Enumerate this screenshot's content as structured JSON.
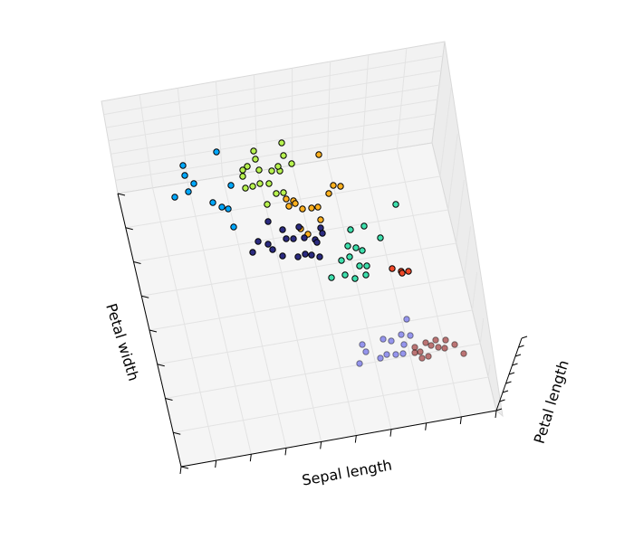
{
  "chart_data": {
    "type": "scatter",
    "projection": "3d",
    "grid": true,
    "xlabel": "Sepal length",
    "ylabel": "Petal width",
    "zlabel": "Petal length",
    "series": [
      {
        "cluster": 0,
        "color": "#00a8ff",
        "points": [
          [
            202,
            183
          ],
          [
            204,
            194
          ],
          [
            214,
            203
          ],
          [
            208,
            212
          ],
          [
            193,
            218
          ],
          [
            239,
            168
          ],
          [
            255,
            205
          ],
          [
            235,
            224
          ],
          [
            245,
            229
          ],
          [
            252,
            231
          ],
          [
            258,
            251
          ]
        ]
      },
      {
        "cluster": 1,
        "color": "#b7f24f",
        "points": [
          [
            280,
            167
          ],
          [
            311,
            158
          ],
          [
            282,
            176
          ],
          [
            273,
            184
          ],
          [
            268,
            188
          ],
          [
            268,
            195
          ],
          [
            286,
            188
          ],
          [
            300,
            189
          ],
          [
            309,
            189
          ],
          [
            307,
            184
          ],
          [
            322,
            181
          ],
          [
            313,
            172
          ],
          [
            297,
            203
          ],
          [
            287,
            203
          ],
          [
            279,
            206
          ],
          [
            271,
            208
          ],
          [
            295,
            226
          ],
          [
            305,
            214
          ],
          [
            313,
            213
          ]
        ]
      },
      {
        "cluster": 2,
        "color": "#ffb01f",
        "points": [
          [
            352,
            171
          ],
          [
            368,
            205
          ],
          [
            376,
            206
          ],
          [
            363,
            214
          ],
          [
            316,
            220
          ],
          [
            324,
            222
          ],
          [
            326,
            225
          ],
          [
            319,
            228
          ],
          [
            334,
            231
          ],
          [
            344,
            230
          ],
          [
            351,
            229
          ],
          [
            354,
            243
          ],
          [
            332,
            253
          ],
          [
            340,
            259
          ]
        ]
      },
      {
        "cluster": 3,
        "color": "#2b2b80",
        "points": [
          [
            296,
            245
          ],
          [
            330,
            251
          ],
          [
            312,
            254
          ],
          [
            354,
            252
          ],
          [
            356,
            258
          ],
          [
            336,
            263
          ],
          [
            348,
            265
          ],
          [
            285,
            267
          ],
          [
            296,
            270
          ],
          [
            316,
            264
          ],
          [
            324,
            264
          ],
          [
            350,
            268
          ],
          [
            279,
            279
          ],
          [
            301,
            276
          ],
          [
            312,
            283
          ],
          [
            337,
            281
          ],
          [
            344,
            282
          ],
          [
            353,
            284
          ],
          [
            329,
            284
          ]
        ]
      },
      {
        "cluster": 4,
        "color": "#3ee0ad",
        "points": [
          [
            437,
            226
          ],
          [
            387,
            254
          ],
          [
            402,
            250
          ],
          [
            420,
            263
          ],
          [
            384,
            272
          ],
          [
            393,
            274
          ],
          [
            400,
            277
          ],
          [
            386,
            284
          ],
          [
            377,
            288
          ],
          [
            397,
            294
          ],
          [
            405,
            294
          ],
          [
            381,
            304
          ],
          [
            392,
            308
          ],
          [
            404,
            304
          ],
          [
            366,
            307
          ]
        ]
      },
      {
        "cluster": 5,
        "color": "#f04a2a",
        "points": [
          [
            433,
            297
          ],
          [
            443,
            300
          ],
          [
            451,
            300
          ],
          [
            444,
            302
          ]
        ]
      },
      {
        "cluster": 6,
        "color": "#4646e6",
        "points": [
          [
            449,
            353
          ],
          [
            443,
            370
          ],
          [
            453,
            371
          ],
          [
            423,
            375
          ],
          [
            432,
            377
          ],
          [
            400,
            381
          ],
          [
            446,
            381
          ],
          [
            404,
            389
          ],
          [
            420,
            396
          ],
          [
            427,
            392
          ],
          [
            437,
            392
          ],
          [
            445,
            391
          ],
          [
            397,
            402
          ]
        ]
      },
      {
        "cluster": 7,
        "color": "#8b0a0a",
        "points": [
          [
            470,
            379
          ],
          [
            481,
            376
          ],
          [
            492,
            376
          ],
          [
            502,
            381
          ],
          [
            484,
            384
          ],
          [
            476,
            382
          ],
          [
            458,
            384
          ],
          [
            464,
            389
          ],
          [
            473,
            394
          ],
          [
            491,
            385
          ],
          [
            458,
            390
          ],
          [
            466,
            396
          ],
          [
            512,
            391
          ]
        ]
      }
    ]
  }
}
